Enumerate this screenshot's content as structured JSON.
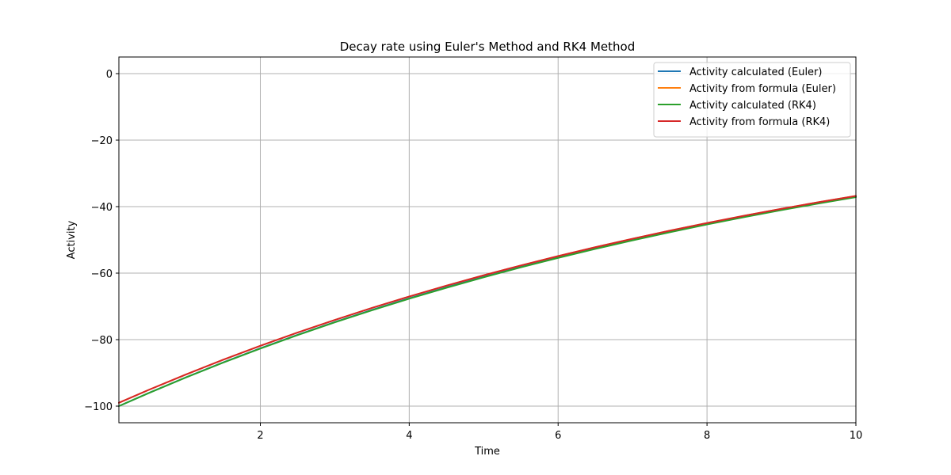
{
  "chart_data": {
    "type": "line",
    "title": "Decay rate using Euler's Method and RK4 Method",
    "xlabel": "Time",
    "ylabel": "Activity",
    "xlim": [
      0.1,
      10
    ],
    "ylim": [
      -105,
      5
    ],
    "xticks": [
      2,
      4,
      6,
      8,
      10
    ],
    "yticks": [
      0,
      -20,
      -40,
      -60,
      -80,
      -100
    ],
    "grid": true,
    "legend_position": "top-right",
    "series": [
      {
        "name": "Activity calculated (Euler)",
        "color": "#1f77b4",
        "x": [
          0.1,
          0.5,
          1,
          1.5,
          2,
          2.5,
          3,
          3.5,
          4,
          4.5,
          5,
          5.5,
          6,
          6.5,
          7,
          7.5,
          8,
          8.5,
          9,
          9.5,
          10
        ],
        "y": [
          -100.0,
          -96.06,
          -91.35,
          -86.87,
          -82.61,
          -78.56,
          -74.71,
          -71.05,
          -67.57,
          -64.26,
          -61.11,
          -58.11,
          -55.26,
          -52.55,
          -49.98,
          -47.53,
          -45.2,
          -42.98,
          -40.88,
          -38.87,
          -36.97
        ]
      },
      {
        "name": "Activity from formula (Euler)",
        "color": "#ff7f0e",
        "x": [
          0.1,
          0.5,
          1,
          1.5,
          2,
          2.5,
          3,
          3.5,
          4,
          4.5,
          5,
          5.5,
          6,
          6.5,
          7,
          7.5,
          8,
          8.5,
          9,
          9.5,
          10
        ],
        "y": [
          -99.0,
          -95.12,
          -90.48,
          -86.07,
          -81.87,
          -77.88,
          -74.08,
          -70.47,
          -67.03,
          -63.76,
          -60.65,
          -57.69,
          -54.88,
          -52.2,
          -49.66,
          -47.24,
          -44.93,
          -42.74,
          -40.66,
          -38.67,
          -36.79
        ]
      },
      {
        "name": "Activity calculated (RK4)",
        "color": "#2ca02c",
        "x": [
          0.1,
          0.5,
          1,
          1.5,
          2,
          2.5,
          3,
          3.5,
          4,
          4.5,
          5,
          5.5,
          6,
          6.5,
          7,
          7.5,
          8,
          8.5,
          9,
          9.5,
          10
        ],
        "y": [
          -100.0,
          -96.08,
          -91.39,
          -86.93,
          -82.69,
          -78.66,
          -74.82,
          -71.17,
          -67.7,
          -64.4,
          -61.26,
          -58.26,
          -55.42,
          -52.72,
          -50.15,
          -47.7,
          -45.37,
          -43.16,
          -41.05,
          -39.05,
          -37.15
        ]
      },
      {
        "name": "Activity from formula (RK4)",
        "color": "#d62728",
        "x": [
          0.1,
          0.5,
          1,
          1.5,
          2,
          2.5,
          3,
          3.5,
          4,
          4.5,
          5,
          5.5,
          6,
          6.5,
          7,
          7.5,
          8,
          8.5,
          9,
          9.5,
          10
        ],
        "y": [
          -99.0,
          -95.12,
          -90.48,
          -86.07,
          -81.87,
          -77.88,
          -74.08,
          -70.47,
          -67.03,
          -63.76,
          -60.65,
          -57.69,
          -54.88,
          -52.2,
          -49.66,
          -47.24,
          -44.93,
          -42.74,
          -40.66,
          -38.67,
          -36.79
        ]
      }
    ]
  }
}
